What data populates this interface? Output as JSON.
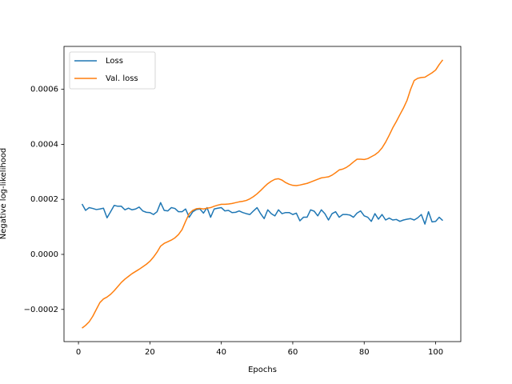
{
  "chart_data": {
    "type": "line",
    "xlabel": "Epochs",
    "ylabel": "Negative log-likelihood",
    "x": [
      1,
      2,
      3,
      4,
      5,
      6,
      7,
      8,
      9,
      10,
      11,
      12,
      13,
      14,
      15,
      16,
      17,
      18,
      19,
      20,
      21,
      22,
      23,
      24,
      25,
      26,
      27,
      28,
      29,
      30,
      31,
      32,
      33,
      34,
      35,
      36,
      37,
      38,
      39,
      40,
      41,
      42,
      43,
      44,
      45,
      46,
      47,
      48,
      49,
      50,
      51,
      52,
      53,
      54,
      55,
      56,
      57,
      58,
      59,
      60,
      61,
      62,
      63,
      64,
      65,
      66,
      67,
      68,
      69,
      70,
      71,
      72,
      73,
      74,
      75,
      76,
      77,
      78,
      79,
      80,
      81,
      82,
      83,
      84,
      85,
      86,
      87,
      88,
      89,
      90,
      91,
      92,
      93,
      94,
      95,
      96,
      97,
      98,
      99,
      100,
      101,
      102
    ],
    "series": [
      {
        "name": "Loss",
        "color": "#1f77b4",
        "values": [
          0.000183,
          0.00016,
          0.00017,
          0.000167,
          0.000163,
          0.000165,
          0.000168,
          0.000133,
          0.000155,
          0.000178,
          0.000175,
          0.000175,
          0.000162,
          0.000168,
          0.000162,
          0.000165,
          0.000172,
          0.000158,
          0.000153,
          0.000152,
          0.000145,
          0.000155,
          0.000188,
          0.00016,
          0.000158,
          0.00017,
          0.000167,
          0.000155,
          0.000155,
          0.000165,
          0.000135,
          0.000155,
          0.000163,
          0.000165,
          0.00015,
          0.00017,
          0.000135,
          0.000165,
          0.000168,
          0.00017,
          0.000158,
          0.00016,
          0.000152,
          0.000153,
          0.000158,
          0.000152,
          0.000148,
          0.000145,
          0.000158,
          0.00017,
          0.000148,
          0.00013,
          0.000162,
          0.000148,
          0.00014,
          0.000162,
          0.000148,
          0.000152,
          0.000152,
          0.000145,
          0.00015,
          0.000122,
          0.000135,
          0.000135,
          0.000162,
          0.000157,
          0.00014,
          0.000162,
          0.000148,
          0.000125,
          0.000148,
          0.000155,
          0.000135,
          0.000145,
          0.000145,
          0.000143,
          0.000135,
          0.00015,
          0.000158,
          0.00014,
          0.000135,
          0.00012,
          0.000148,
          0.000128,
          0.000145,
          0.000125,
          0.000132,
          0.000125,
          0.000127,
          0.00012,
          0.000125,
          0.000128,
          0.00013,
          0.000125,
          0.000133,
          0.000145,
          0.00011,
          0.000155,
          0.000118,
          0.00012,
          0.000135,
          0.000123
        ]
      },
      {
        "name": "Val. loss",
        "color": "#ff7f0e",
        "values": [
          -0.000268,
          -0.000258,
          -0.000245,
          -0.000225,
          -0.0002,
          -0.000175,
          -0.000162,
          -0.000155,
          -0.000145,
          -0.000132,
          -0.000117,
          -0.000102,
          -9e-05,
          -8e-05,
          -7e-05,
          -6.2e-05,
          -5.4e-05,
          -4.5e-05,
          -3.6e-05,
          -2.5e-05,
          -1e-05,
          8e-06,
          3e-05,
          4e-05,
          4.6e-05,
          5.2e-05,
          6e-05,
          7.2e-05,
          9e-05,
          0.00012,
          0.000148,
          0.00016,
          0.000166,
          0.000167,
          0.000165,
          0.000168,
          0.00017,
          0.000175,
          0.000179,
          0.000182,
          0.000182,
          0.000183,
          0.000185,
          0.000188,
          0.000191,
          0.000193,
          0.000196,
          0.000202,
          0.00021,
          0.00022,
          0.000232,
          0.000245,
          0.000257,
          0.000266,
          0.000273,
          0.000275,
          0.00027,
          0.000261,
          0.000255,
          0.000251,
          0.00025,
          0.000252,
          0.000255,
          0.000258,
          0.000263,
          0.000268,
          0.000273,
          0.000278,
          0.00028,
          0.000282,
          0.000288,
          0.000297,
          0.000307,
          0.00031,
          0.000316,
          0.000325,
          0.000336,
          0.000346,
          0.000346,
          0.000345,
          0.000348,
          0.000355,
          0.000362,
          0.000372,
          0.000387,
          0.000408,
          0.000433,
          0.00046,
          0.000483,
          0.000508,
          0.000532,
          0.00056,
          0.0006,
          0.000632,
          0.00064,
          0.000643,
          0.000644,
          0.000652,
          0.00066,
          0.00067,
          0.00069,
          0.000707
        ]
      }
    ],
    "xlim": [
      -4.05,
      107.05
    ],
    "xticks": [
      0,
      20,
      40,
      60,
      80,
      100
    ],
    "ylim": [
      -0.000317,
      0.000756
    ],
    "yticks": [
      {
        "value": -0.0002,
        "label": "−0.0002"
      },
      {
        "value": 0,
        "label": "0.0000"
      },
      {
        "value": 0.0002,
        "label": "0.0002"
      },
      {
        "value": 0.0004,
        "label": "0.0004"
      },
      {
        "value": 0.0006,
        "label": "0.0006"
      }
    ],
    "legend": "upper left",
    "grid": false
  }
}
